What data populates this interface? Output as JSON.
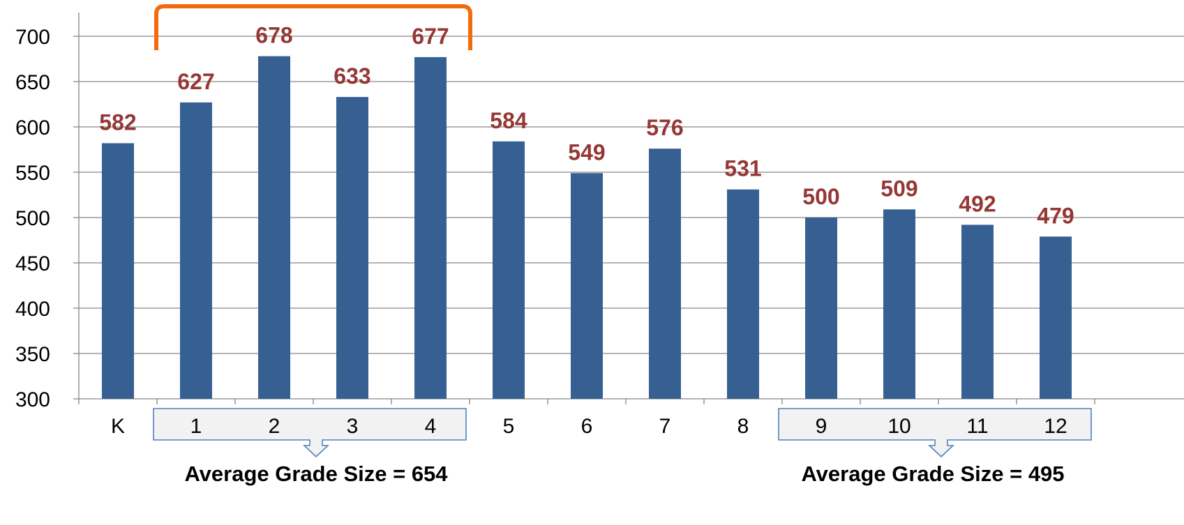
{
  "chart_data": {
    "type": "bar",
    "categories": [
      "K",
      "1",
      "2",
      "3",
      "4",
      "5",
      "6",
      "7",
      "8",
      "9",
      "10",
      "11",
      "12"
    ],
    "values": [
      582,
      627,
      678,
      633,
      677,
      584,
      549,
      576,
      531,
      500,
      509,
      492,
      479
    ],
    "data_labels": [
      "582",
      "627",
      "678",
      "633",
      "677",
      "584",
      "549",
      "576",
      "531",
      "500",
      "509",
      "492",
      "479"
    ],
    "ylim": [
      300,
      700
    ],
    "yticks": [
      "300",
      "350",
      "400",
      "450",
      "500",
      "550",
      "600",
      "650",
      "700"
    ],
    "grid": true,
    "bar_color": "#366092",
    "label_color": "#953735",
    "bracket_color": "#F26B0F",
    "title": "",
    "xlabel": "",
    "ylabel": ""
  },
  "annotations": {
    "group_1_4": {
      "categories": [
        "1",
        "2",
        "3",
        "4"
      ],
      "label": "Average Grade Size = 654"
    },
    "group_9_12": {
      "categories": [
        "9",
        "10",
        "11",
        "12"
      ],
      "label": "Average Grade Size = 495"
    },
    "bracket": {
      "categories": [
        "1",
        "4"
      ]
    }
  }
}
